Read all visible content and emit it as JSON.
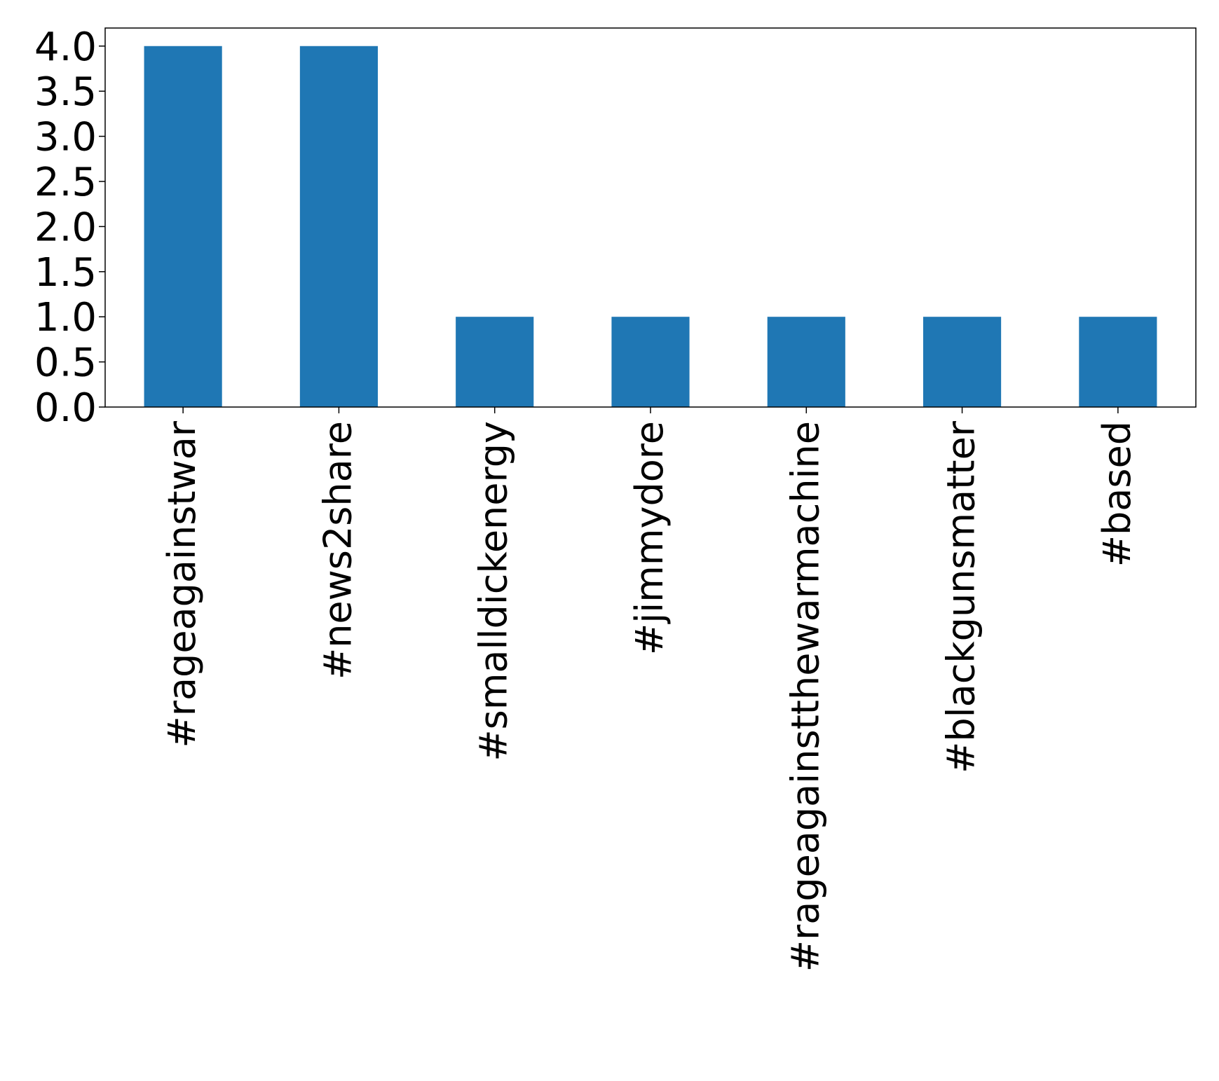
{
  "chart_data": {
    "type": "bar",
    "title": "",
    "xlabel": "",
    "ylabel": "",
    "categories": [
      "#rageagainstwar",
      "#news2share",
      "#smalldickenergy",
      "#jimmydore",
      "#rageagainstthewarmachine",
      "#blackgunsmatter",
      "#based"
    ],
    "values": [
      4,
      4,
      1,
      1,
      1,
      1,
      1
    ],
    "ylim": [
      0,
      4.2
    ],
    "yticks": [
      0.0,
      0.5,
      1.0,
      1.5,
      2.0,
      2.5,
      3.0,
      3.5,
      4.0
    ],
    "ytick_labels": [
      "0.0",
      "0.5",
      "1.0",
      "1.5",
      "2.0",
      "2.5",
      "3.0",
      "3.5",
      "4.0"
    ],
    "grid": false,
    "legend": "none",
    "bar_color": "#1f77b4"
  }
}
